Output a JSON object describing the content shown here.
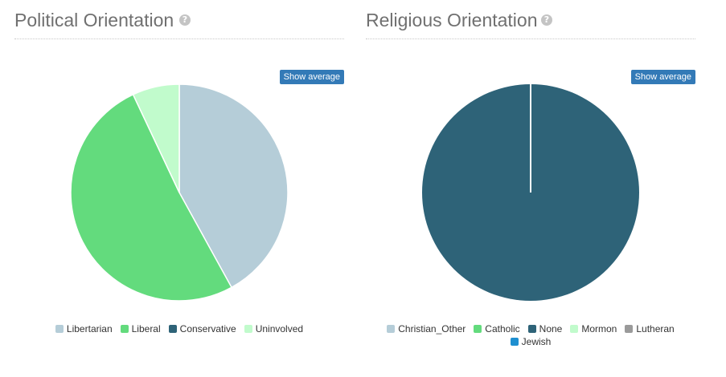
{
  "panels": [
    {
      "id": "political",
      "title": "Political Orientation",
      "help_icon": "question-circle-icon",
      "button_label": "Show average",
      "chart_data": {
        "type": "pie",
        "title": "Political Orientation",
        "categories": [
          "Libertarian",
          "Liberal",
          "Conservative",
          "Uninvolved"
        ],
        "values": [
          42,
          51,
          0,
          7
        ],
        "colors": [
          "#b5cdd8",
          "#63db7d",
          "#2e6378",
          "#c1fbcc"
        ],
        "legend_position": "bottom"
      }
    },
    {
      "id": "religious",
      "title": "Religious Orientation",
      "help_icon": "question-circle-icon",
      "button_label": "Show average",
      "chart_data": {
        "type": "pie",
        "title": "Religious Orientation",
        "categories": [
          "Christian_Other",
          "Catholic",
          "None",
          "Mormon",
          "Lutheran",
          "Jewish"
        ],
        "values": [
          0,
          0,
          100,
          0,
          0,
          0
        ],
        "colors": [
          "#b5cdd8",
          "#63db7d",
          "#2e6378",
          "#c1fbcc",
          "#9a9a9a",
          "#1e8fd0"
        ],
        "legend_position": "bottom"
      }
    }
  ]
}
